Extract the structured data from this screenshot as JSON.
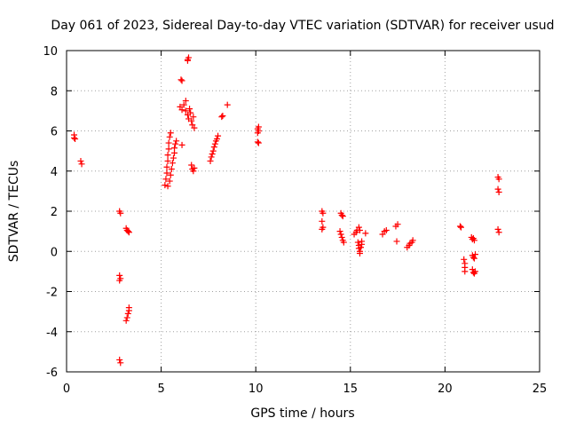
{
  "chart_data": {
    "type": "scatter",
    "title": "Day 061 of 2023, Sidereal Day-to-day VTEC variation (SDTVAR) for receiver usud",
    "xlabel": "GPS time / hours",
    "ylabel": "SDTVAR / TECUs",
    "xlim": [
      0,
      25
    ],
    "ylim": [
      -6,
      10
    ],
    "xticks": [
      0,
      5,
      10,
      15,
      20,
      25
    ],
    "yticks": [
      -6,
      -4,
      -2,
      0,
      2,
      4,
      6,
      8,
      10
    ],
    "xtick_labels": [
      "0",
      "5",
      "10",
      "15",
      "20",
      "25"
    ],
    "ytick_labels": [
      "-6",
      "-4",
      "-2",
      "0",
      "2",
      "4",
      "6",
      "8",
      "10"
    ],
    "grid": true,
    "marker": "plus",
    "color": "#ff0000",
    "series": [
      {
        "name": "SDTVAR",
        "points": [
          [
            0.4,
            5.8
          ],
          [
            0.4,
            5.65
          ],
          [
            0.45,
            5.6
          ],
          [
            0.75,
            4.5
          ],
          [
            0.8,
            4.35
          ],
          [
            2.8,
            2.0
          ],
          [
            2.85,
            1.9
          ],
          [
            2.8,
            -1.2
          ],
          [
            2.85,
            -1.35
          ],
          [
            2.8,
            -1.45
          ],
          [
            2.8,
            -5.4
          ],
          [
            2.85,
            -5.55
          ],
          [
            3.15,
            1.15
          ],
          [
            3.2,
            1.05
          ],
          [
            3.25,
            1.0
          ],
          [
            3.3,
            0.95
          ],
          [
            3.15,
            -3.45
          ],
          [
            3.2,
            -3.3
          ],
          [
            3.25,
            -3.1
          ],
          [
            3.3,
            -2.95
          ],
          [
            3.3,
            -2.8
          ],
          [
            5.2,
            3.3
          ],
          [
            5.25,
            3.6
          ],
          [
            5.3,
            3.9
          ],
          [
            5.3,
            4.2
          ],
          [
            5.35,
            4.5
          ],
          [
            5.35,
            4.8
          ],
          [
            5.4,
            5.1
          ],
          [
            5.4,
            5.4
          ],
          [
            5.45,
            5.7
          ],
          [
            5.5,
            5.9
          ],
          [
            5.35,
            3.25
          ],
          [
            5.45,
            3.5
          ],
          [
            5.5,
            3.8
          ],
          [
            5.55,
            4.1
          ],
          [
            5.6,
            4.4
          ],
          [
            5.65,
            4.65
          ],
          [
            5.7,
            4.9
          ],
          [
            5.7,
            5.15
          ],
          [
            5.75,
            5.35
          ],
          [
            5.8,
            5.5
          ],
          [
            6.0,
            7.2
          ],
          [
            6.1,
            7.05
          ],
          [
            6.2,
            7.3
          ],
          [
            6.3,
            7.5
          ],
          [
            6.3,
            7.0
          ],
          [
            6.4,
            6.8
          ],
          [
            6.45,
            6.6
          ],
          [
            6.5,
            7.1
          ],
          [
            6.55,
            6.9
          ],
          [
            6.6,
            6.5
          ],
          [
            6.65,
            6.3
          ],
          [
            6.7,
            6.7
          ],
          [
            6.75,
            6.15
          ],
          [
            6.1,
            8.5
          ],
          [
            6.05,
            8.55
          ],
          [
            6.4,
            9.55
          ],
          [
            6.45,
            9.65
          ],
          [
            6.4,
            9.5
          ],
          [
            6.6,
            4.3
          ],
          [
            6.65,
            4.1
          ],
          [
            6.7,
            4.0
          ],
          [
            6.75,
            4.15
          ],
          [
            6.1,
            5.3
          ],
          [
            7.6,
            4.5
          ],
          [
            7.65,
            4.7
          ],
          [
            7.7,
            4.85
          ],
          [
            7.75,
            5.0
          ],
          [
            7.8,
            5.2
          ],
          [
            7.85,
            5.35
          ],
          [
            7.9,
            5.5
          ],
          [
            7.95,
            5.6
          ],
          [
            8.0,
            5.75
          ],
          [
            8.2,
            6.7
          ],
          [
            8.25,
            6.75
          ],
          [
            8.5,
            7.3
          ],
          [
            10.1,
            6.1
          ],
          [
            10.1,
            5.9
          ],
          [
            10.15,
            6.2
          ],
          [
            10.15,
            6.0
          ],
          [
            10.1,
            5.45
          ],
          [
            10.15,
            5.4
          ],
          [
            13.5,
            2.0
          ],
          [
            13.55,
            1.9
          ],
          [
            13.5,
            1.5
          ],
          [
            13.55,
            1.2
          ],
          [
            13.5,
            1.1
          ],
          [
            14.5,
            1.9
          ],
          [
            14.55,
            1.8
          ],
          [
            14.6,
            1.75
          ],
          [
            14.45,
            1.0
          ],
          [
            14.5,
            0.85
          ],
          [
            14.55,
            0.7
          ],
          [
            14.6,
            0.55
          ],
          [
            14.65,
            0.45
          ],
          [
            15.2,
            0.85
          ],
          [
            15.3,
            0.95
          ],
          [
            15.35,
            1.05
          ],
          [
            15.45,
            1.2
          ],
          [
            15.5,
            1.05
          ],
          [
            15.4,
            0.45
          ],
          [
            15.45,
            0.3
          ],
          [
            15.45,
            0.15
          ],
          [
            15.5,
            0.0
          ],
          [
            15.5,
            -0.1
          ],
          [
            15.55,
            0.2
          ],
          [
            15.6,
            0.35
          ],
          [
            15.6,
            0.5
          ],
          [
            15.8,
            0.9
          ],
          [
            16.7,
            0.85
          ],
          [
            16.8,
            1.0
          ],
          [
            16.9,
            1.05
          ],
          [
            17.4,
            1.25
          ],
          [
            17.5,
            1.35
          ],
          [
            17.45,
            0.5
          ],
          [
            18.0,
            0.2
          ],
          [
            18.1,
            0.3
          ],
          [
            18.15,
            0.4
          ],
          [
            18.25,
            0.45
          ],
          [
            18.3,
            0.55
          ],
          [
            20.8,
            1.25
          ],
          [
            20.85,
            1.2
          ],
          [
            21.0,
            -0.4
          ],
          [
            21.05,
            -0.6
          ],
          [
            21.05,
            -0.8
          ],
          [
            21.05,
            -1.0
          ],
          [
            21.4,
            0.7
          ],
          [
            21.45,
            0.6
          ],
          [
            21.5,
            0.65
          ],
          [
            21.55,
            0.55
          ],
          [
            21.45,
            -0.2
          ],
          [
            21.5,
            -0.3
          ],
          [
            21.55,
            -0.35
          ],
          [
            21.6,
            -0.15
          ],
          [
            21.45,
            -0.9
          ],
          [
            21.5,
            -1.05
          ],
          [
            21.55,
            -1.1
          ],
          [
            21.6,
            -1.0
          ],
          [
            22.8,
            3.7
          ],
          [
            22.85,
            3.6
          ],
          [
            22.8,
            3.1
          ],
          [
            22.85,
            2.95
          ],
          [
            22.8,
            1.1
          ],
          [
            22.85,
            0.95
          ]
        ]
      }
    ]
  }
}
